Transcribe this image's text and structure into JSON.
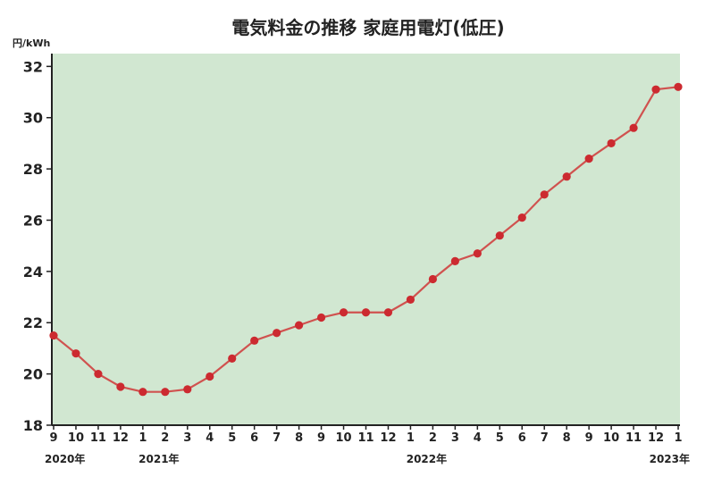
{
  "chart_data": {
    "type": "line",
    "title": "電気料金の推移 家庭用電灯(低圧)",
    "ylabel": "円/kWh",
    "xlabel": "",
    "ylim": [
      18,
      32.5
    ],
    "yticks": [
      18,
      20,
      22,
      24,
      26,
      28,
      30,
      32
    ],
    "grid": false,
    "categories": [
      "9",
      "10",
      "11",
      "12",
      "1",
      "2",
      "3",
      "4",
      "5",
      "6",
      "7",
      "8",
      "9",
      "10",
      "11",
      "12",
      "1",
      "2",
      "3",
      "4",
      "5",
      "6",
      "7",
      "8",
      "9",
      "10",
      "11",
      "12",
      "1"
    ],
    "year_labels": [
      {
        "index": 0,
        "label": "2020年"
      },
      {
        "index": 4,
        "label": "2021年"
      },
      {
        "index": 16,
        "label": "2022年"
      },
      {
        "index": 28,
        "label": "2023年"
      }
    ],
    "series": [
      {
        "values": [
          21.5,
          20.8,
          20.0,
          19.5,
          19.3,
          19.3,
          19.4,
          19.9,
          20.6,
          21.3,
          21.6,
          21.9,
          22.2,
          22.4,
          22.4,
          22.4,
          22.9,
          23.7,
          24.4,
          24.7,
          25.4,
          26.1,
          27.0,
          27.7,
          28.4,
          29.0,
          29.6,
          31.1,
          31.2
        ]
      }
    ],
    "colors": {
      "plot_background": "#d1e7d1",
      "line": "#d0524f",
      "marker": "#cc2a30"
    }
  }
}
